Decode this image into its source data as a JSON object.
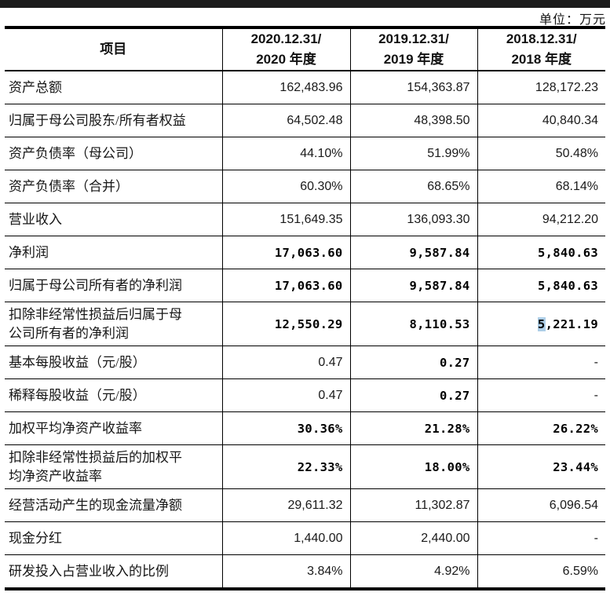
{
  "page": {
    "unit_label": "单位：万元"
  },
  "colors": {
    "text": "#1a1a1a",
    "line": "#000000",
    "top_bar": "#1b1b1b",
    "highlight_bg": "#aecfe8"
  },
  "table": {
    "columns": [
      "项目",
      "2020.12.31/\n2020 年度",
      "2019.12.31/\n2019 年度",
      "2018.12.31/\n2018 年度"
    ],
    "rows": [
      {
        "label": "资产总额",
        "v2020": "162,483.96",
        "v2019": "154,363.87",
        "v2018": "128,172.23"
      },
      {
        "label": "归属于母公司股东/所有者权益",
        "v2020": "64,502.48",
        "v2019": "48,398.50",
        "v2018": "40,840.34"
      },
      {
        "label": "资产负债率（母公司）",
        "v2020": "44.10%",
        "v2019": "51.99%",
        "v2018": "50.48%"
      },
      {
        "label": "资产负债率（合并）",
        "v2020": "60.30%",
        "v2019": "68.65%",
        "v2018": "68.14%"
      },
      {
        "label": "营业收入",
        "v2020": "151,649.35",
        "v2019": "136,093.30",
        "v2018": "94,212.20"
      },
      {
        "label": "净利润",
        "v2020": "17,063.60",
        "v2019": "9,587.84",
        "v2018": "5,840.63"
      },
      {
        "label": "归属于母公司所有者的净利润",
        "v2020": "17,063.60",
        "v2019": "9,587.84",
        "v2018": "5,840.63"
      },
      {
        "label": "扣除非经常性损益后归属于母\n公司所有者的净利润",
        "v2020": "12,550.29",
        "v2019": "8,110.53",
        "v2018": "5,221.19",
        "v2018_first": "5",
        "v2018_rest": ",221.19"
      },
      {
        "label": "基本每股收益（元/股）",
        "v2020": "0.47",
        "v2019": "0.27",
        "v2018": "-"
      },
      {
        "label": "稀释每股收益（元/股）",
        "v2020": "0.47",
        "v2019": "0.27",
        "v2018": "-"
      },
      {
        "label": "加权平均净资产收益率",
        "v2020": "30.36%",
        "v2019": "21.28%",
        "v2018": "26.22%"
      },
      {
        "label": "扣除非经常性损益后的加权平\n均净资产收益率",
        "v2020": "22.33%",
        "v2019": "18.00%",
        "v2018": "23.44%"
      },
      {
        "label": "经营活动产生的现金流量净额",
        "v2020": "29,611.32",
        "v2019": "11,302.87",
        "v2018": "6,096.54"
      },
      {
        "label": "现金分红",
        "v2020": "1,440.00",
        "v2019": "2,440.00",
        "v2018": "-"
      },
      {
        "label": "研发投入占营业收入的比例",
        "v2020": "3.84%",
        "v2019": "4.92%",
        "v2018": "6.59%"
      }
    ]
  }
}
